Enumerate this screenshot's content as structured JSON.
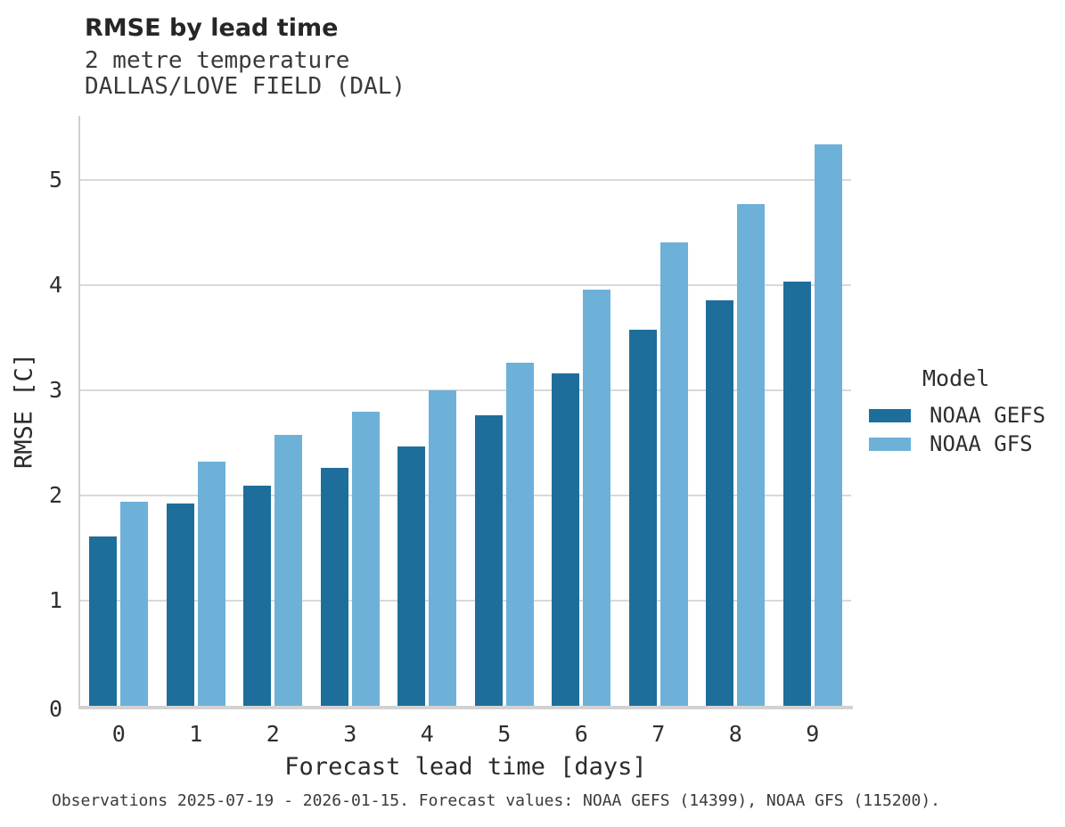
{
  "header": {
    "title": "RMSE by lead time",
    "subtitle_line1": "2 metre temperature",
    "subtitle_line2": "DALLAS/LOVE FIELD (DAL)"
  },
  "legend": {
    "title": "Model",
    "entries": [
      {
        "label": "NOAA GEFS",
        "color": "#1e6e9b"
      },
      {
        "label": "NOAA GFS",
        "color": "#6db1d9"
      }
    ]
  },
  "footer": {
    "caption": "Observations 2025-07-19 - 2026-01-15. Forecast values: NOAA GEFS (14399), NOAA GFS (115200)."
  },
  "colors": {
    "gefs_bar": "#1e6e9b",
    "gfs_bar": "#6db1d9",
    "gridline": "#d9d9d9",
    "axis_spine": "#cfcfcf",
    "title_text": "#262626",
    "body_text": "#2e2e2e",
    "caption_text": "#3a3a3a",
    "background": "#ffffff"
  },
  "chart_data": {
    "type": "bar",
    "title": "RMSE by lead time",
    "subtitle": [
      "2 metre temperature",
      "DALLAS/LOVE FIELD (DAL)"
    ],
    "xlabel": "Forecast lead time [days]",
    "ylabel": "RMSE [C]",
    "categories": [
      "0",
      "1",
      "2",
      "3",
      "4",
      "5",
      "6",
      "7",
      "8",
      "9"
    ],
    "series": [
      {
        "name": "NOAA GEFS",
        "color": "#1e6e9b",
        "values": [
          1.61,
          1.92,
          2.09,
          2.26,
          2.47,
          2.76,
          3.16,
          3.58,
          3.86,
          4.03
        ]
      },
      {
        "name": "NOAA GFS",
        "color": "#6db1d9",
        "values": [
          1.94,
          2.32,
          2.58,
          2.8,
          3.0,
          3.26,
          3.96,
          4.41,
          4.77,
          5.34
        ]
      }
    ],
    "ylim": [
      0,
      5.61
    ],
    "yticks": [
      0,
      1,
      2,
      3,
      4,
      5
    ],
    "grid": "horizontal",
    "legend_title": "Model",
    "legend_position": "right",
    "caption": "Observations 2025-07-19 - 2026-01-15. Forecast values: NOAA GEFS (14399), NOAA GFS (115200)."
  }
}
